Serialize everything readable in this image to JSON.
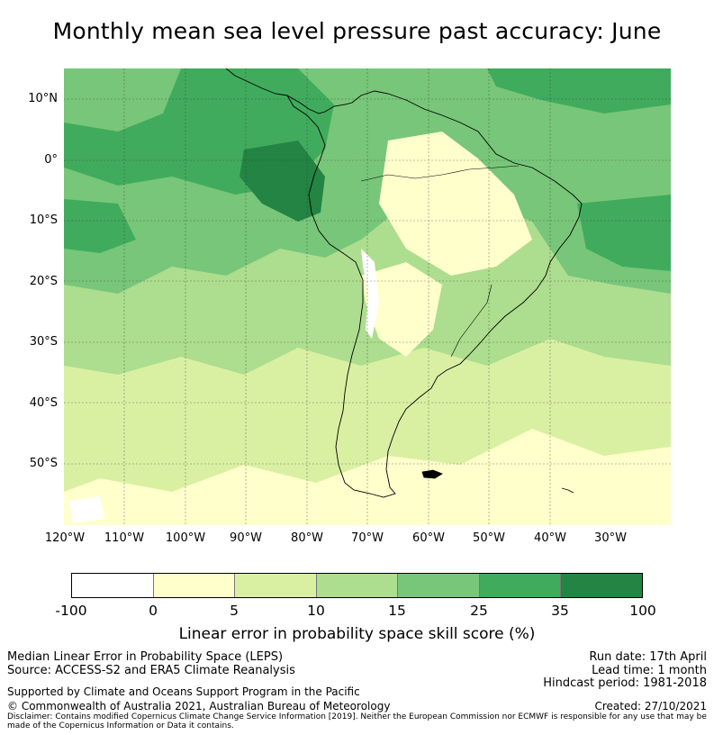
{
  "title": "Monthly mean sea level pressure past accuracy: June",
  "map": {
    "region": "South America",
    "lat_ticks": [
      "10°N",
      "0°",
      "10°S",
      "20°S",
      "30°S",
      "40°S",
      "50°S"
    ],
    "lon_ticks": [
      "120°W",
      "110°W",
      "100°W",
      "90°W",
      "80°W",
      "70°W",
      "60°W",
      "50°W",
      "40°W",
      "30°W"
    ]
  },
  "legend": {
    "title": "Linear error in probability space skill score (%)",
    "bounds": [
      "-100",
      "0",
      "5",
      "10",
      "15",
      "25",
      "35",
      "100"
    ],
    "colors": [
      "#ffffff",
      "#ffffcc",
      "#d9f0a3",
      "#addd8e",
      "#78c679",
      "#41ab5d",
      "#238443"
    ]
  },
  "info": {
    "line1": "Median Linear Error in Probability Space (LEPS)",
    "line2": "Source: ACCESS-S2 and ERA5 Climate Reanalysis",
    "line3": "Supported by Climate and Oceans Support Program in the Pacific",
    "line4": "© Commonwealth of Australia 2021, Australian Bureau of Meteorology",
    "run_date": "Run date: 17th April",
    "lead_time": "Lead time: 1 month",
    "hindcast": "Hindcast period: 1981-2018",
    "created": "Created: 27/10/2021",
    "disclaimer": "Disclaimer: Contains modified Copernicus Climate Change Service Information [2019]. Neither the European Commission nor ECMWF is responsible for any use that may be made of the Copernicus Information or Data it contains."
  }
}
